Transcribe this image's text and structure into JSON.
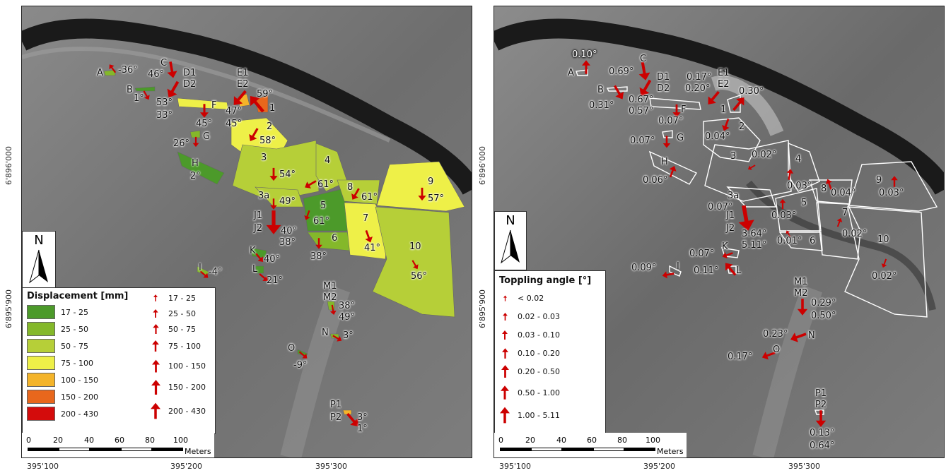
{
  "left_map": {
    "legend_title": "Displacement [mm]",
    "classes": [
      {
        "label": "17 - 25",
        "color": "#4c9a2a"
      },
      {
        "label": "25 - 50",
        "color": "#84b82a"
      },
      {
        "label": "50 - 75",
        "color": "#b6cf38"
      },
      {
        "label": "75 - 100",
        "color": "#eef048"
      },
      {
        "label": "100 - 150",
        "color": "#f4b42a"
      },
      {
        "label": "150 - 200",
        "color": "#e8671c"
      },
      {
        "label": "200 - 430",
        "color": "#d40c0c"
      }
    ],
    "arrow_classes": [
      "17 - 25",
      "25 - 50",
      "50 - 75",
      "75 - 100",
      "100 - 150",
      "150 - 200",
      "200 - 430"
    ],
    "labels": [
      {
        "id": "A",
        "angle": "-36°"
      },
      {
        "id": "B",
        "angle": "1°"
      },
      {
        "id": "C",
        "angle": "46°"
      },
      {
        "id": "D1",
        "angle": ""
      },
      {
        "id": "D2",
        "angle": "53°"
      },
      {
        "id": "E1",
        "angle": ""
      },
      {
        "id": "E2",
        "angle": "47°"
      },
      {
        "id": "1",
        "angle": "59°"
      },
      {
        "id": "F",
        "angle": "45°"
      },
      {
        "id": "G",
        "angle": "26°"
      },
      {
        "id": "H",
        "angle": "2°"
      },
      {
        "id": "2",
        "angle": "58°"
      },
      {
        "id": "3",
        "angle": "54°"
      },
      {
        "id": "4",
        "angle": "61°"
      },
      {
        "id": "8",
        "angle": "61°"
      },
      {
        "id": "9",
        "angle": "57°"
      },
      {
        "id": "3a",
        "angle": "49°"
      },
      {
        "id": "5",
        "angle": "61°"
      },
      {
        "id": "J1",
        "angle": ""
      },
      {
        "id": "J2",
        "angle": "40°"
      },
      {
        "id": "7",
        "angle": "41°"
      },
      {
        "id": "6",
        "angle": "38°"
      },
      {
        "id": "10",
        "angle": "56°"
      },
      {
        "id": "K",
        "angle": "40°"
      },
      {
        "id": "L",
        "angle": "21°"
      },
      {
        "id": "I",
        "angle": "-4°"
      },
      {
        "id": "M1",
        "angle": ""
      },
      {
        "id": "M2",
        "angle": "38°"
      },
      {
        "id": "N",
        "angle": "3°"
      },
      {
        "id": "O",
        "angle": "-9°"
      },
      {
        "id": "P1",
        "angle": ""
      },
      {
        "id": "P2",
        "angle": "3°"
      }
    ],
    "extra_angles": {
      "D2b": "33°",
      "E2b": "45°",
      "J2b": "38°",
      "M2b": "49°",
      "P2b": "1°"
    }
  },
  "right_map": {
    "legend_title": "Toppling angle [°]",
    "classes": [
      "< 0.02",
      "0.02 - 0.03",
      "0.03 - 0.10",
      "0.10 - 0.20",
      "0.20 - 0.50",
      "0.50 - 1.00",
      "1.00 - 5.11"
    ],
    "values": {
      "A": "0.10°",
      "C": "0.69°",
      "B": "0.31°",
      "D2": "0.67°",
      "F": "0.57°",
      "Fb": "0.07°",
      "E1": "0.17°",
      "E2": "0.20°",
      "one": "0.30°",
      "two": "0.04°",
      "G": "0.07°",
      "three": "0.02°",
      "H": "0.06°",
      "four": "0.03°",
      "eight": "0.04°",
      "nine": "0.03°",
      "threeA": "0.07°",
      "five": "0.03°",
      "seven": "0.02°",
      "J1": "3.64°",
      "J2": "5.11°",
      "six": "0.01°",
      "K": "0.07°",
      "L": "0.11°",
      "I": "0.09°",
      "ten": "0.02°",
      "M1": "0.29°",
      "M2": "0.50°",
      "N": "0.23°",
      "O": "0.17°",
      "P1": "0.13°",
      "P2": "0.64°"
    }
  },
  "scale": {
    "ticks": [
      "0",
      "20",
      "40",
      "60",
      "80",
      "100"
    ],
    "unit": "Meters"
  },
  "north": "N",
  "x_ticks": [
    "395'100",
    "395'200",
    "395'300"
  ],
  "y_ticks": [
    "6'896'000",
    "6'895'900"
  ],
  "colors": {
    "arrow": "#cc0000",
    "outline": "#ffffff"
  }
}
